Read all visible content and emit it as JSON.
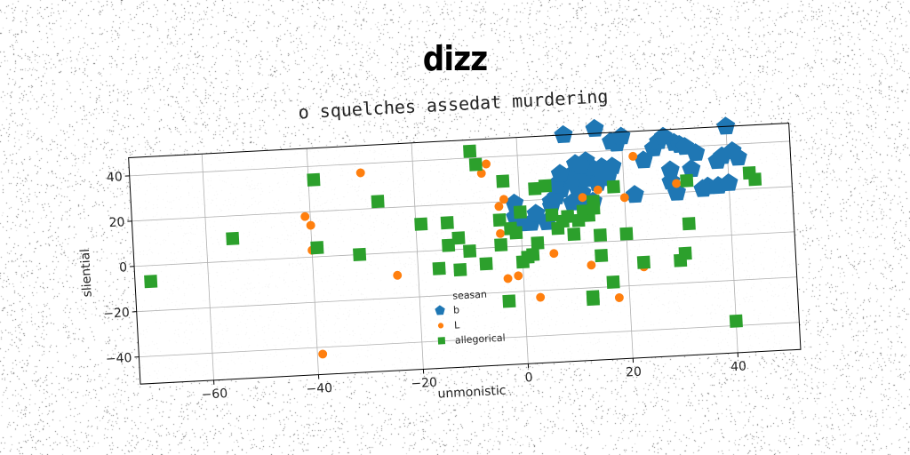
{
  "header": {
    "title": "dizz"
  },
  "chart_data": {
    "type": "scatter",
    "title": "o squelches assedat murdering",
    "xlabel": "unmonistic",
    "ylabel": "sliential",
    "xlim": [
      -74,
      52
    ],
    "ylim": [
      -52,
      48
    ],
    "xticks": [
      -60,
      -40,
      -20,
      0,
      20,
      40
    ],
    "yticks": [
      -40,
      -20,
      0,
      20,
      40
    ],
    "grid": true,
    "legend": {
      "placement": "lower-center",
      "title": "seasan"
    },
    "series": [
      {
        "name": "b",
        "color": "#1f77b4",
        "marker": "pentagon",
        "points": [
          [
            8,
            24
          ],
          [
            9,
            28
          ],
          [
            10,
            30
          ],
          [
            11,
            35
          ],
          [
            11,
            25
          ],
          [
            12,
            31
          ],
          [
            12,
            22
          ],
          [
            13,
            36
          ],
          [
            13,
            28
          ],
          [
            14,
            33
          ],
          [
            14,
            18
          ],
          [
            15,
            26
          ],
          [
            16,
            33
          ],
          [
            17,
            28
          ],
          [
            18,
            33
          ],
          [
            18,
            44
          ],
          [
            19,
            43
          ],
          [
            20,
            46
          ],
          [
            22,
            20
          ],
          [
            24,
            35
          ],
          [
            26,
            40
          ],
          [
            27,
            43
          ],
          [
            28,
            45
          ],
          [
            29,
            25
          ],
          [
            29,
            30
          ],
          [
            30,
            42
          ],
          [
            30,
            20
          ],
          [
            31,
            41
          ],
          [
            32,
            40
          ],
          [
            33,
            30
          ],
          [
            34,
            37
          ],
          [
            35,
            21
          ],
          [
            36,
            22
          ],
          [
            38,
            22
          ],
          [
            38,
            33
          ],
          [
            39,
            35
          ],
          [
            40,
            48
          ],
          [
            40,
            23
          ],
          [
            41,
            37
          ],
          [
            42,
            34
          ],
          [
            9,
            48
          ],
          [
            15,
            50
          ],
          [
            -1,
            19
          ],
          [
            -1,
            13
          ],
          [
            0,
            10
          ],
          [
            2,
            10
          ],
          [
            3,
            14
          ],
          [
            5,
            10
          ],
          [
            6,
            17
          ],
          [
            6,
            19
          ],
          [
            7,
            21
          ],
          [
            7,
            26
          ],
          [
            8,
            31
          ],
          [
            10,
            18
          ],
          [
            11,
            19
          ],
          [
            12,
            20
          ],
          [
            12,
            34
          ],
          [
            16,
            29
          ]
        ]
      },
      {
        "name": "L",
        "color": "#ff7f0e",
        "marker": "circle",
        "points": [
          [
            -39,
            -43
          ],
          [
            -40,
            14
          ],
          [
            -41,
            18
          ],
          [
            -40,
            3
          ],
          [
            -30,
            36
          ],
          [
            -24,
            -10
          ],
          [
            -7,
            33
          ],
          [
            -6,
            37
          ],
          [
            -4,
            6
          ],
          [
            -3,
            -14
          ],
          [
            -1,
            -13
          ],
          [
            3,
            -23
          ],
          [
            12,
            20
          ],
          [
            13,
            -10
          ],
          [
            15,
            23
          ],
          [
            18,
            -25
          ],
          [
            20,
            19
          ],
          [
            22,
            37
          ],
          [
            23,
            -12
          ],
          [
            30,
            24
          ],
          [
            13,
            14
          ],
          [
            -3,
            21
          ],
          [
            -4,
            18
          ],
          [
            6,
            -4
          ]
        ]
      },
      {
        "name": "allegorical",
        "color": "#2ca02c",
        "marker": "square",
        "points": [
          [
            -71,
            -7
          ],
          [
            -55,
            10
          ],
          [
            -39,
            34
          ],
          [
            -39,
            4
          ],
          [
            -31,
            0
          ],
          [
            -27,
            23
          ],
          [
            -19,
            12
          ],
          [
            -16,
            -8
          ],
          [
            -14,
            12
          ],
          [
            -14,
            2
          ],
          [
            -12,
            -9
          ],
          [
            -10,
            -1
          ],
          [
            -9,
            43
          ],
          [
            -8,
            37
          ],
          [
            -7,
            -7
          ],
          [
            -4,
            1
          ],
          [
            -3,
            29
          ],
          [
            -3,
            -24
          ],
          [
            -1,
            6
          ],
          [
            0,
            15
          ],
          [
            0,
            -7
          ],
          [
            1,
            -5
          ],
          [
            2,
            -4
          ],
          [
            3,
            25
          ],
          [
            3,
            1
          ],
          [
            5,
            26
          ],
          [
            8,
            10
          ],
          [
            9,
            12
          ],
          [
            11,
            10
          ],
          [
            12,
            14
          ],
          [
            13,
            12
          ],
          [
            14,
            15
          ],
          [
            15,
            -6
          ],
          [
            15,
            3
          ],
          [
            13,
            -25
          ],
          [
            17,
            -18
          ],
          [
            20,
            3
          ],
          [
            23,
            -10
          ],
          [
            30,
            -10
          ],
          [
            31,
            -7
          ],
          [
            32,
            6
          ],
          [
            32,
            25
          ],
          [
            44,
            27
          ],
          [
            45,
            24
          ],
          [
            40,
            -38
          ],
          [
            -12,
            5
          ],
          [
            13,
            -24
          ],
          [
            14,
            18
          ],
          [
            18,
            24
          ],
          [
            10,
            4
          ],
          [
            7,
            7
          ],
          [
            6,
            13
          ],
          [
            -2,
            8
          ],
          [
            -4,
            12
          ]
        ]
      }
    ]
  }
}
